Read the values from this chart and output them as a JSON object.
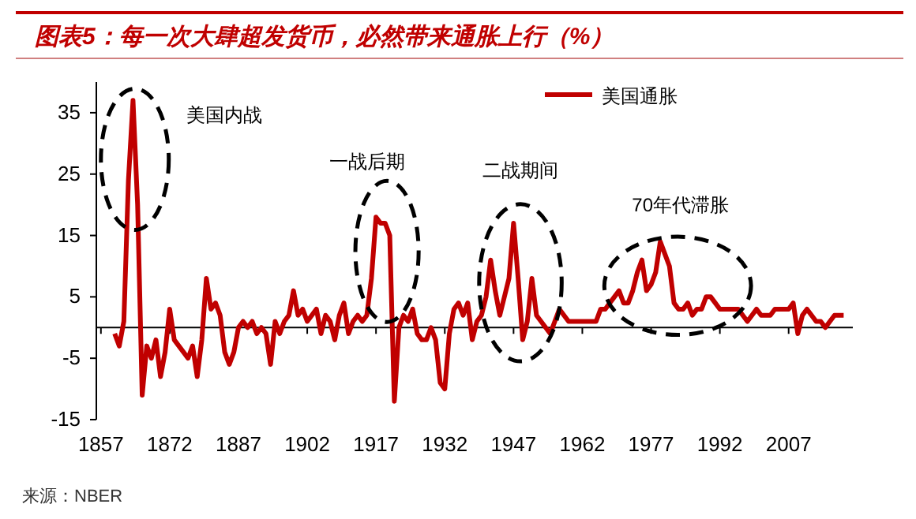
{
  "chart_data": {
    "type": "line",
    "title": "图表5：每一次大肆超发货币，必然带来通胀上行（%）",
    "xlim": [
      1856,
      2021
    ],
    "xticks": [
      1857,
      1872,
      1887,
      1902,
      1917,
      1932,
      1947,
      1962,
      1977,
      1992,
      2007
    ],
    "ylim": [
      -15,
      40
    ],
    "yticks": [
      -15,
      -5,
      5,
      15,
      25,
      35
    ],
    "legend": "top",
    "x": [
      1860,
      1861,
      1862,
      1863,
      1864,
      1865,
      1866,
      1867,
      1868,
      1869,
      1870,
      1871,
      1872,
      1873,
      1874,
      1875,
      1876,
      1877,
      1878,
      1879,
      1880,
      1881,
      1882,
      1883,
      1884,
      1885,
      1886,
      1887,
      1888,
      1889,
      1890,
      1891,
      1892,
      1893,
      1894,
      1895,
      1896,
      1897,
      1898,
      1899,
      1900,
      1901,
      1902,
      1903,
      1904,
      1905,
      1906,
      1907,
      1908,
      1909,
      1910,
      1911,
      1912,
      1913,
      1914,
      1915,
      1916,
      1917,
      1918,
      1919,
      1920,
      1921,
      1922,
      1923,
      1924,
      1925,
      1926,
      1927,
      1928,
      1929,
      1930,
      1931,
      1932,
      1933,
      1934,
      1935,
      1936,
      1937,
      1938,
      1939,
      1940,
      1941,
      1942,
      1943,
      1944,
      1945,
      1946,
      1947,
      1948,
      1949,
      1950,
      1951,
      1952,
      1953,
      1954,
      1955,
      1956,
      1957,
      1958,
      1959,
      1960,
      1961,
      1962,
      1963,
      1964,
      1965,
      1966,
      1967,
      1968,
      1969,
      1970,
      1971,
      1972,
      1973,
      1974,
      1975,
      1976,
      1977,
      1978,
      1979,
      1980,
      1981,
      1982,
      1983,
      1984,
      1985,
      1986,
      1987,
      1988,
      1989,
      1990,
      1991,
      1992,
      1993,
      1994,
      1995,
      1996,
      1997,
      1998,
      1999,
      2000,
      2001,
      2002,
      2003,
      2004,
      2005,
      2006,
      2007,
      2008,
      2009,
      2010,
      2011,
      2012,
      2013,
      2014,
      2015,
      2016,
      2017,
      2018,
      2019
    ],
    "series": [
      {
        "name": "美国通胀",
        "color": "#c00000",
        "values": [
          -1,
          -3,
          1,
          24,
          37,
          20,
          -11,
          -3,
          -5,
          -2,
          -8,
          -4,
          3,
          -2,
          -3,
          -4,
          -5,
          -3,
          -8,
          -2,
          8,
          3,
          4,
          2,
          -4,
          -6,
          -4,
          0,
          1,
          0,
          1,
          -1,
          0,
          -1,
          -6,
          1,
          -1,
          1,
          2,
          6,
          2,
          3,
          1,
          2,
          3,
          -1,
          2,
          1,
          -2,
          2,
          4,
          -1,
          1,
          2,
          1,
          2,
          8,
          18,
          17,
          17,
          15,
          -12,
          0,
          2,
          1,
          3,
          -1,
          -2,
          -2,
          0,
          -2,
          -9,
          -10,
          -1,
          3,
          4,
          2,
          4,
          -2,
          1,
          2,
          5,
          11,
          6,
          2,
          5,
          8,
          17,
          8,
          -2,
          1,
          8,
          2,
          1,
          0,
          -1,
          1,
          3,
          2,
          1,
          1,
          1,
          1,
          1,
          1,
          1,
          3,
          3,
          4,
          5,
          6,
          4,
          4,
          6,
          9,
          11,
          6,
          7,
          9,
          14,
          12,
          10,
          4,
          3,
          3,
          4,
          2,
          3,
          3,
          5,
          5,
          4,
          3,
          3,
          3,
          3,
          3,
          2,
          1,
          2,
          3,
          2,
          2,
          2,
          3,
          3,
          3,
          3,
          4,
          -1,
          2,
          3,
          2,
          1,
          1,
          0,
          1,
          2,
          2,
          2
        ]
      }
    ],
    "annotations": [
      "美国内战",
      "一战后期",
      "二战期间",
      "70年代滞胀",
      "来源：NBER"
    ]
  }
}
